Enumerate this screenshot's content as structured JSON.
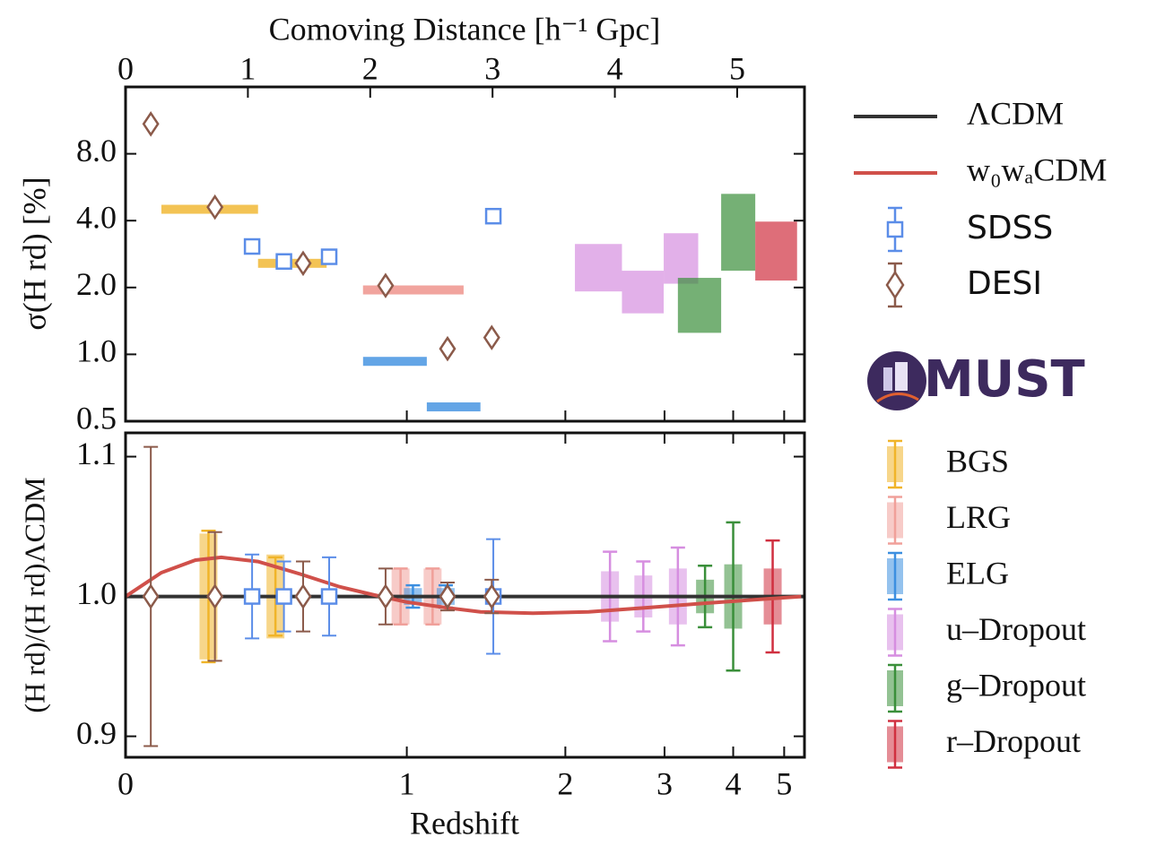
{
  "chart_data": {
    "type": "errorbar",
    "x_label": "Redshift",
    "x2_label": "Comoving Distance [h⁻¹ Gpc]",
    "xticks": [
      0,
      1,
      2,
      3,
      4,
      5
    ],
    "x2lim": [
      0,
      5.55
    ],
    "x2ticks": [
      0,
      1,
      2,
      3,
      4,
      5
    ],
    "top": {
      "ylabel": "σ(H rd) [%]",
      "log": true,
      "ylim": [
        0.5,
        16
      ],
      "yticks": [
        0.5,
        {
          "value": 1,
          "label": "1.0"
        },
        {
          "value": 2,
          "label": "2.0"
        },
        {
          "value": 4,
          "label": "4.0"
        },
        {
          "value": 8,
          "label": "8.0"
        }
      ]
    },
    "bottom": {
      "ylabel": "(H rd)/(H rd)ΛCDM",
      "ylim": [
        0.885,
        1.117
      ],
      "yticks": [
        0.9,
        {
          "value": 1,
          "label": "1.0"
        },
        1.1
      ]
    },
    "models": [
      {
        "name": "ΛCDM",
        "color": "#333333",
        "x": [
          0,
          5.45
        ],
        "values": [
          1,
          1
        ]
      },
      {
        "name": "w₀wₐCDM",
        "color": "#d0504a",
        "x": [
          0,
          0.1,
          0.2,
          0.28,
          0.4,
          0.55,
          0.7,
          0.85,
          1.0,
          1.2,
          1.4,
          1.75,
          2.2,
          2.8,
          3.5,
          4.5,
          5.4
        ],
        "values": [
          1.0,
          1.017,
          1.026,
          1.028,
          1.025,
          1.016,
          1.007,
          1.001,
          0.996,
          0.992,
          0.989,
          0.988,
          0.989,
          0.992,
          0.995,
          0.998,
          1.0
        ]
      }
    ],
    "sdss": {
      "name": "SDSS",
      "color": "#5b8de8",
      "marker": "square",
      "x": [
        0.38,
        0.49,
        0.66,
        1.48
      ],
      "top_values": [
        3.06,
        2.62,
        2.75,
        4.19
      ],
      "values": [
        1,
        1,
        1,
        1
      ],
      "errors": [
        0.03,
        0.025,
        0.028,
        0.041
      ]
    },
    "desi": {
      "name": "DESI",
      "color": "#8b5a4a",
      "marker": "diamond",
      "x": [
        0.07,
        0.26,
        0.56,
        0.9,
        1.21,
        1.47
      ],
      "top_values": [
        10.9,
        4.6,
        2.57,
        2.04,
        1.06,
        1.19
      ],
      "values": [
        1,
        1,
        1,
        1,
        1,
        1
      ],
      "errors": [
        0.107,
        0.046,
        0.025,
        0.02,
        0.01,
        0.012
      ]
    },
    "logo": "MUST",
    "tracers": [
      {
        "name": "BGS",
        "color": "#f0b429",
        "bins": [
          {
            "z_range": [
              0.1,
              0.4
            ],
            "sigma": 4.5,
            "z": 0.24,
            "value": 1,
            "box": 0.045,
            "error": 0.047
          },
          {
            "z_range": [
              0.4,
              0.65
            ],
            "sigma": 2.57,
            "z": 0.46,
            "value": 1,
            "box": 0.03,
            "error": 0.028
          }
        ]
      },
      {
        "name": "LRG",
        "color": "#f0a09a",
        "bins": [
          {
            "z_range": [
              0.8,
              1.3
            ],
            "sigma": 1.95,
            "z": 0.97,
            "value": 1,
            "box": 0.02,
            "error": 0.02
          },
          {
            "z_range": [
              0.8,
              1.3
            ],
            "sigma": 1.95,
            "z": 1.13,
            "value": 1,
            "box": 0.02,
            "error": 0.02
          }
        ]
      },
      {
        "name": "ELG",
        "color": "#3c8fe0",
        "bins": [
          {
            "z_range": [
              0.8,
              1.1
            ],
            "sigma": 0.93,
            "z": 1.03,
            "value": 1,
            "box": 0.006,
            "error": 0.008
          },
          {
            "z_range": [
              1.1,
              1.4
            ],
            "sigma": 0.58,
            "z": 1.2,
            "value": 1,
            "box": 0.006,
            "error": 0.008
          }
        ]
      },
      {
        "name": "u–Dropout",
        "color": "#d68ee0",
        "bins": [
          {
            "z_range": [
              2.08,
              2.52
            ],
            "sigma": [
              1.92,
              3.14
            ],
            "z": 2.4,
            "value": 1,
            "box": 0.018,
            "error": 0.032
          },
          {
            "z_range": [
              2.52,
              2.99
            ],
            "sigma": [
              1.53,
              2.38
            ],
            "z": 2.75,
            "value": 1,
            "box": 0.015,
            "error": 0.025
          },
          {
            "z_range": [
              2.99,
              3.45
            ],
            "sigma": [
              2.08,
              3.51
            ],
            "z": 3.17,
            "value": 1,
            "box": 0.02,
            "error": 0.035
          }
        ]
      },
      {
        "name": "g–Dropout",
        "color": "#3a8f3a",
        "bins": [
          {
            "z_range": [
              3.17,
              3.8
            ],
            "sigma": [
              1.25,
              2.21
            ],
            "z": 3.55,
            "value": 1,
            "box": 0.012,
            "error": 0.022
          },
          {
            "z_range": [
              3.8,
              4.4
            ],
            "sigma": [
              2.38,
              5.28
            ],
            "z": 4.0,
            "value": 1,
            "box": 0.023,
            "error": 0.053
          }
        ]
      },
      {
        "name": "r–Dropout",
        "color": "#d03040",
        "bins": [
          {
            "z_range": [
              4.4,
              5.3
            ],
            "sigma": [
              2.15,
              3.96
            ],
            "z": 4.75,
            "value": 1,
            "box": 0.02,
            "error": 0.04
          }
        ]
      }
    ]
  }
}
